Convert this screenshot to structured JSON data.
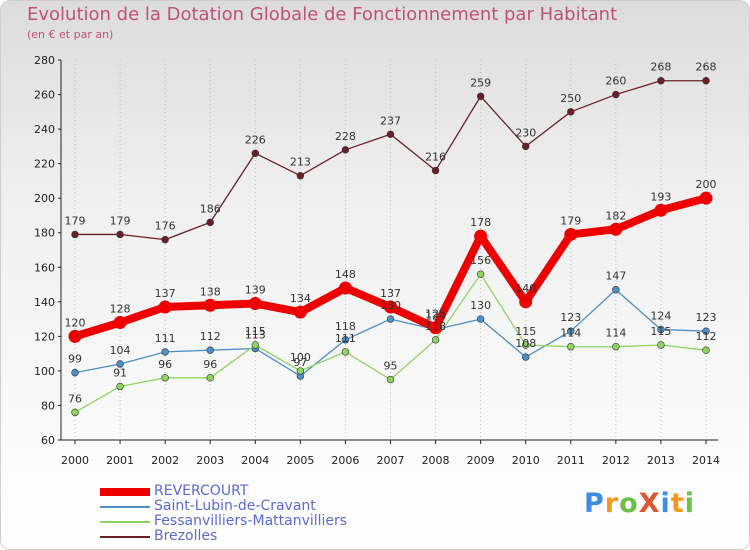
{
  "title": "Evolution de la Dotation Globale de Fonctionnement par Habitant",
  "subtitle": "(en € et par an)",
  "logo": {
    "text": "ProXiti",
    "letters": [
      {
        "ch": "P",
        "color": "#3d8ee0"
      },
      {
        "ch": "r",
        "color": "#f29a1c"
      },
      {
        "ch": "o",
        "color": "#6cc04a"
      },
      {
        "ch": "X",
        "color": "#e0542e"
      },
      {
        "ch": "i",
        "color": "#3d8ee0"
      },
      {
        "ch": "t",
        "color": "#f29a1c"
      },
      {
        "ch": "i",
        "color": "#6cc04a"
      }
    ]
  },
  "chart_data": {
    "type": "line",
    "title": "Evolution de la Dotation Globale de Fonctionnement par Habitant",
    "subtitle": "(en € et par an)",
    "x": [
      "2000",
      "2001",
      "2002",
      "2003",
      "2004",
      "2005",
      "2006",
      "2007",
      "2008",
      "2009",
      "2010",
      "2011",
      "2012",
      "2013",
      "2014"
    ],
    "ylim": [
      60,
      280
    ],
    "yticks": [
      60,
      80,
      100,
      120,
      140,
      160,
      180,
      200,
      220,
      240,
      260,
      280
    ],
    "grid": "vertical-dotted",
    "legend": "bottom-left",
    "series": [
      {
        "name": "Brezolles",
        "color": "#6b1f2a",
        "values": [
          179,
          179,
          176,
          186,
          226,
          213,
          228,
          237,
          216,
          259,
          230,
          250,
          260,
          268,
          268
        ]
      },
      {
        "name": "Saint-Lubin-de-Cravant",
        "color": "#4d8fc7",
        "values": [
          99,
          104,
          111,
          112,
          113,
          97,
          118,
          130,
          124,
          130,
          108,
          123,
          147,
          124,
          123
        ]
      },
      {
        "name": "Fessanvilliers-Mattanvilliers",
        "color": "#8fd460",
        "values": [
          76,
          91,
          96,
          96,
          115,
          100,
          111,
          95,
          118,
          156,
          115,
          114,
          114,
          115,
          112
        ]
      },
      {
        "name": "REVERCOURT",
        "color": "#ee0000",
        "values": [
          120,
          128,
          137,
          138,
          139,
          134,
          148,
          137,
          125,
          178,
          140,
          179,
          182,
          193,
          200
        ]
      }
    ],
    "data_labels": {
      "Brezolles": [
        "179",
        "179",
        "176",
        "186",
        "226",
        "213",
        "228",
        "237",
        "216",
        "259",
        "230",
        "250",
        "260",
        "268",
        "268"
      ],
      "Saint-Lubin-de-Cravant": [
        "99",
        "104",
        "111",
        "112",
        "113",
        "97",
        "118",
        "130",
        "124",
        "130",
        "108",
        "123",
        "147",
        "124",
        "123"
      ],
      "Fessanvilliers-Mattanvilliers": [
        "76",
        "91",
        "96",
        "96",
        "115",
        "100",
        "111",
        "95",
        "118",
        "156",
        "115",
        "114",
        "114",
        "115",
        "112"
      ],
      "REVERCOURT": [
        "120",
        "128",
        "137",
        "138",
        "139",
        "134",
        "148",
        "137",
        "125",
        "178",
        "140",
        "179",
        "182",
        "193",
        "200"
      ]
    }
  },
  "legend_items": [
    {
      "label": "REVERCOURT",
      "color": "#ee0000",
      "width": 8
    },
    {
      "label": "Saint-Lubin-de-Cravant",
      "color": "#4d8fc7",
      "width": 2
    },
    {
      "label": "Fessanvilliers-Mattanvilliers",
      "color": "#8fd460",
      "width": 2
    },
    {
      "label": "Brezolles",
      "color": "#6b1f2a",
      "width": 2
    }
  ]
}
